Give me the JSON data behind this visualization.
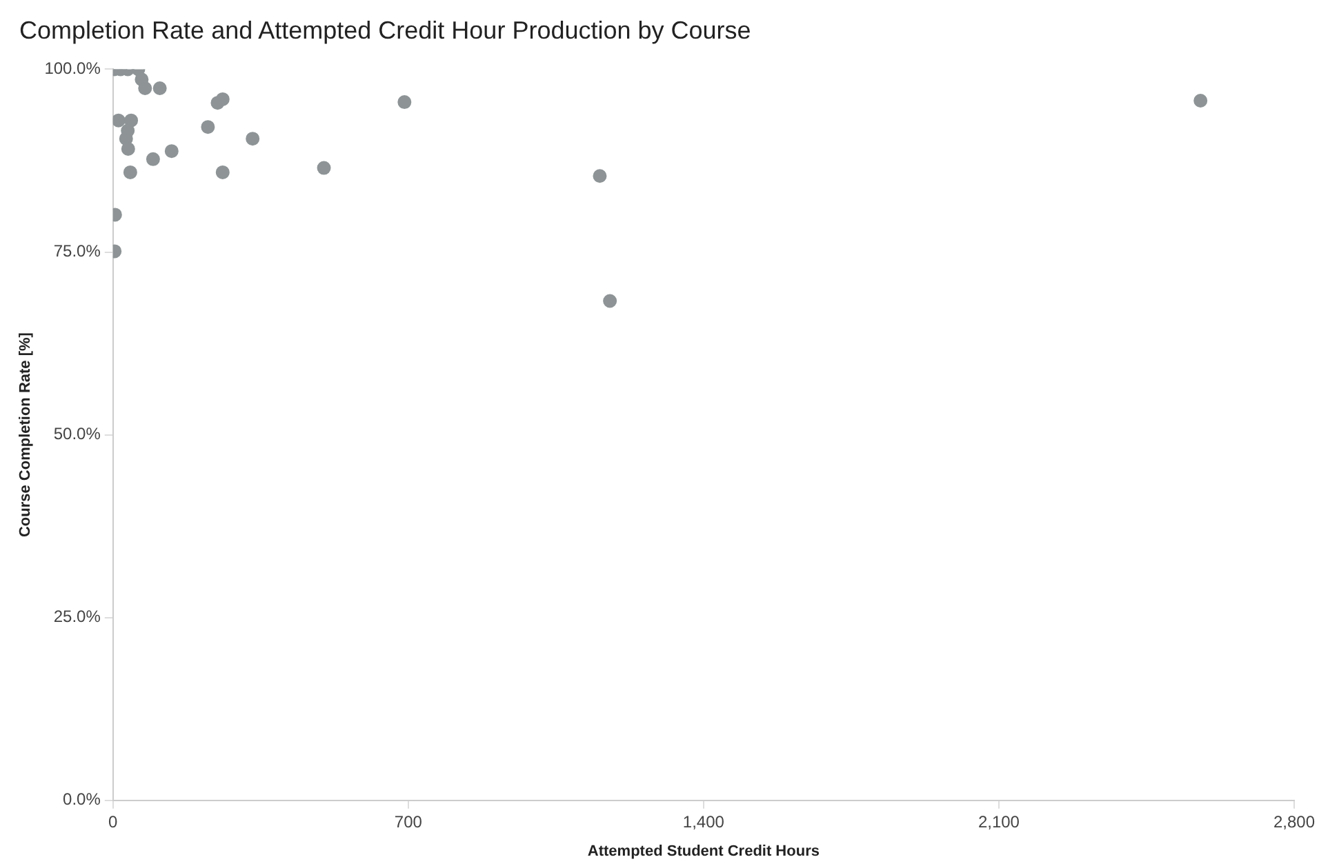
{
  "chart_data": {
    "type": "scatter",
    "title": "Completion Rate and Attempted Credit Hour Production by Course",
    "xlabel": "Attempted Student Credit Hours",
    "ylabel": "Course Completion Rate [%]",
    "x": [
      3,
      18,
      35,
      60,
      68,
      76,
      111,
      260,
      248,
      691,
      13,
      43,
      35,
      31,
      36,
      225,
      331,
      139,
      95,
      41,
      260,
      500,
      5,
      4,
      2578,
      1154,
      1178
    ],
    "series": [
      {
        "color": "#8e9496",
        "values": [
          100,
          100,
          100,
          100,
          98.6,
          97.4,
          97.4,
          95.9,
          95.4,
          95.5,
          93,
          93,
          91.6,
          90.5,
          89.1,
          92.1,
          90.5,
          88.8,
          87.7,
          85.9,
          85.9,
          86.5,
          80.1,
          75.1,
          95.7,
          85.4,
          68.3
        ]
      }
    ],
    "xlim": [
      0,
      2800
    ],
    "xticks": [
      0,
      700,
      {
        "value": 1400,
        "label": "1,400"
      },
      {
        "value": 2100,
        "label": "2,100"
      },
      {
        "value": 2800,
        "label": "2,800"
      }
    ],
    "ylim": [
      0,
      100
    ],
    "yticks": [
      {
        "value": 0,
        "label": "0.0%"
      },
      {
        "value": 25,
        "label": "25.0%"
      },
      {
        "value": 50,
        "label": "50.0%"
      },
      {
        "value": 75,
        "label": "75.0%"
      },
      {
        "value": 100,
        "label": "100.0%"
      }
    ],
    "grid": false,
    "legend": false,
    "marker": "circle"
  }
}
